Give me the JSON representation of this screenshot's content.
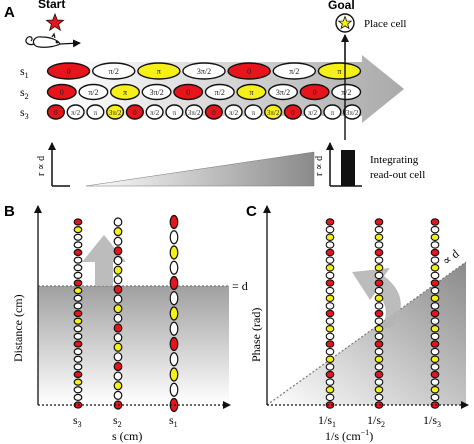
{
  "panel_a": {
    "label": "A",
    "start_label": "Start",
    "goal_label": "Goal",
    "place_cell_label": "Place cell",
    "rows": [
      {
        "name": "s",
        "sub": "1",
        "cells": [
          {
            "phase": "0",
            "color": "red"
          },
          {
            "phase": "π/2",
            "color": "white"
          },
          {
            "phase": "π",
            "color": "yellow"
          },
          {
            "phase": "3π/2",
            "color": "white"
          },
          {
            "phase": "0",
            "color": "red"
          },
          {
            "phase": "π/2",
            "color": "white"
          },
          {
            "phase": "π",
            "color": "yellow"
          }
        ]
      },
      {
        "name": "s",
        "sub": "2",
        "cells": [
          {
            "phase": "0",
            "color": "red"
          },
          {
            "phase": "π/2",
            "color": "white"
          },
          {
            "phase": "π",
            "color": "yellow"
          },
          {
            "phase": "3π/2",
            "color": "white"
          },
          {
            "phase": "0",
            "color": "red"
          },
          {
            "phase": "π/2",
            "color": "white"
          },
          {
            "phase": "π",
            "color": "yellow"
          },
          {
            "phase": "3π/2",
            "color": "white"
          },
          {
            "phase": "0",
            "color": "red"
          },
          {
            "phase": "π/2",
            "color": "white"
          }
        ]
      },
      {
        "name": "s",
        "sub": "3",
        "cells": [
          {
            "phase": "0",
            "color": "red"
          },
          {
            "phase": "π/2",
            "color": "white"
          },
          {
            "phase": "π",
            "color": "white"
          },
          {
            "phase": "3π/2",
            "color": "yellow"
          },
          {
            "phase": "0",
            "color": "red"
          },
          {
            "phase": "π/2",
            "color": "white"
          },
          {
            "phase": "π",
            "color": "white"
          },
          {
            "phase": "3π/2",
            "color": "white"
          },
          {
            "phase": "0",
            "color": "red"
          },
          {
            "phase": "π/2",
            "color": "white"
          },
          {
            "phase": "π",
            "color": "white"
          },
          {
            "phase": "3π/2",
            "color": "yellow"
          },
          {
            "phase": "0",
            "color": "red"
          },
          {
            "phase": "π/2",
            "color": "white"
          },
          {
            "phase": "π",
            "color": "white"
          },
          {
            "phase": "3π/2",
            "color": "white"
          }
        ]
      }
    ],
    "ylabel": "r ∝ d",
    "readout_ylabel": "r ∝ d",
    "readout_label_line1": "Integrating",
    "readout_label_line2": "read-out cell"
  },
  "panel_b": {
    "label": "B",
    "ylabel": "Distance (cm)",
    "xlabel": "s (cm)",
    "d_label": "= d",
    "columns": [
      {
        "tick": "s",
        "sub": "3",
        "pattern": [
          "red",
          "white",
          "white",
          "yellow",
          "red",
          "white",
          "white",
          "white",
          "red",
          "white",
          "white",
          "yellow",
          "red",
          "white",
          "white",
          "yellow",
          "red",
          "white",
          "white",
          "white",
          "red",
          "white",
          "white",
          "yellow",
          "red"
        ]
      },
      {
        "tick": "s",
        "sub": "2",
        "pattern": [
          "red",
          "white",
          "yellow",
          "white",
          "red",
          "white",
          "yellow",
          "white",
          "red",
          "white",
          "yellow",
          "white",
          "red",
          "white",
          "yellow",
          "white",
          "red",
          "white",
          "yellow",
          "white"
        ]
      },
      {
        "tick": "s",
        "sub": "1",
        "pattern": [
          "red",
          "white",
          "yellow",
          "white",
          "red",
          "white",
          "yellow",
          "white",
          "red",
          "white",
          "yellow",
          "white",
          "red"
        ]
      }
    ]
  },
  "panel_c": {
    "label": "C",
    "ylabel": "Phase (rad)",
    "xlabel": "1/s (cm",
    "xlabel_sup": "−1",
    "xlabel_end": ")",
    "slope_label": "∝ d",
    "ticks": [
      {
        "text": "1/s",
        "sub": "1"
      },
      {
        "text": "1/s",
        "sub": "2"
      },
      {
        "text": "1/s",
        "sub": "3"
      }
    ],
    "columns": [
      {
        "pattern": [
          "red",
          "white",
          "yellow",
          "white",
          "red",
          "white",
          "yellow",
          "white",
          "red",
          "white",
          "yellow",
          "white",
          "red",
          "white",
          "yellow",
          "white",
          "red",
          "white",
          "yellow",
          "white",
          "red",
          "white",
          "yellow",
          "white",
          "red"
        ]
      },
      {
        "pattern": [
          "red",
          "white",
          "yellow",
          "white",
          "red",
          "white",
          "yellow",
          "white",
          "red",
          "white",
          "yellow",
          "white",
          "red",
          "white",
          "yellow",
          "white",
          "red",
          "white",
          "yellow",
          "white",
          "red",
          "white",
          "yellow",
          "white",
          "red"
        ]
      },
      {
        "pattern": [
          "red",
          "white",
          "yellow",
          "white",
          "red",
          "white",
          "yellow",
          "white",
          "red",
          "white",
          "yellow",
          "white",
          "red",
          "white",
          "yellow",
          "white",
          "red",
          "white",
          "yellow",
          "white",
          "red",
          "white",
          "yellow",
          "white",
          "red"
        ]
      }
    ]
  },
  "colors": {
    "red": "#e8141c",
    "yellow": "#f5ef1a",
    "white": "#ffffff",
    "stroke": "#111111",
    "gray_dark": "#8c8c8c",
    "gray_light": "#f4f4f4"
  }
}
